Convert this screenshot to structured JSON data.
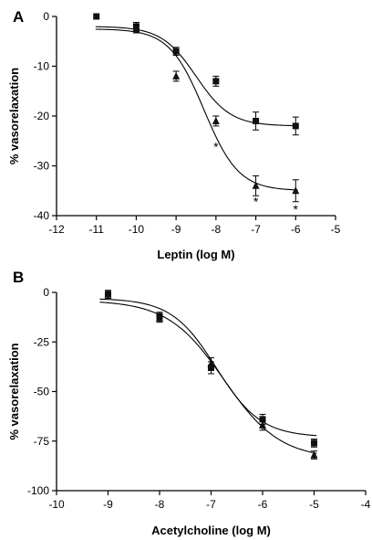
{
  "chart_data": [
    {
      "panel": "A",
      "type": "line",
      "xlabel": "Leptin (log M)",
      "ylabel": "% vasorelaxation",
      "xlim": [
        -12,
        -5
      ],
      "ylim": [
        -40,
        0
      ],
      "xticks": [
        -12,
        -11,
        -10,
        -9,
        -8,
        -7,
        -6,
        -5
      ],
      "yticks": [
        0,
        -10,
        -20,
        -30,
        -40
      ],
      "series": [
        {
          "marker": "square",
          "x": [
            -11,
            -10,
            -9,
            -8,
            -7,
            -6
          ],
          "y": [
            0,
            -2,
            -7,
            -13,
            -21,
            -22
          ],
          "err": [
            0,
            0.8,
            0.8,
            1.0,
            1.8,
            1.8
          ],
          "fit": {
            "top": -2,
            "bottom": -22,
            "logEC50": -8.5,
            "hill": 1
          }
        },
        {
          "marker": "triangle",
          "x": [
            -10,
            -9,
            -8,
            -7,
            -6
          ],
          "y": [
            -2.5,
            -12,
            -21,
            -34,
            -35
          ],
          "err": [
            0.8,
            1.0,
            1.0,
            2.0,
            2.2
          ],
          "fit": {
            "top": -2.5,
            "bottom": -35,
            "logEC50": -8.3,
            "hill": 1
          }
        }
      ],
      "annotations": [
        {
          "text": "*",
          "x": -8,
          "y": -26
        },
        {
          "text": "*",
          "x": -7,
          "y": -37
        },
        {
          "text": "*",
          "x": -6,
          "y": -38.5
        }
      ]
    },
    {
      "panel": "B",
      "type": "line",
      "xlabel": "Acetylcholine (log M)",
      "ylabel": "% vasorelaxation",
      "xlim": [
        -10,
        -4
      ],
      "ylim": [
        -100,
        0
      ],
      "xticks": [
        -10,
        -9,
        -8,
        -7,
        -6,
        -5,
        -4
      ],
      "yticks": [
        0,
        -25,
        -50,
        -75,
        -100
      ],
      "series": [
        {
          "marker": "square",
          "x": [
            -9,
            -8,
            -7,
            -6,
            -5
          ],
          "y": [
            -1,
            -12,
            -38,
            -64,
            -76
          ],
          "err": [
            2,
            2,
            3,
            2.5,
            2
          ],
          "fit": {
            "top": -3,
            "bottom": -73,
            "logEC50": -6.9,
            "hill": 1
          }
        },
        {
          "marker": "triangle",
          "x": [
            -9,
            -8,
            -7,
            -6,
            -5
          ],
          "y": [
            -1,
            -13,
            -36,
            -67,
            -82
          ],
          "err": [
            2,
            2,
            3,
            2.5,
            2
          ],
          "fit": {
            "top": -4,
            "bottom": -84,
            "logEC50": -6.75,
            "hill": 0.8
          }
        }
      ]
    }
  ]
}
